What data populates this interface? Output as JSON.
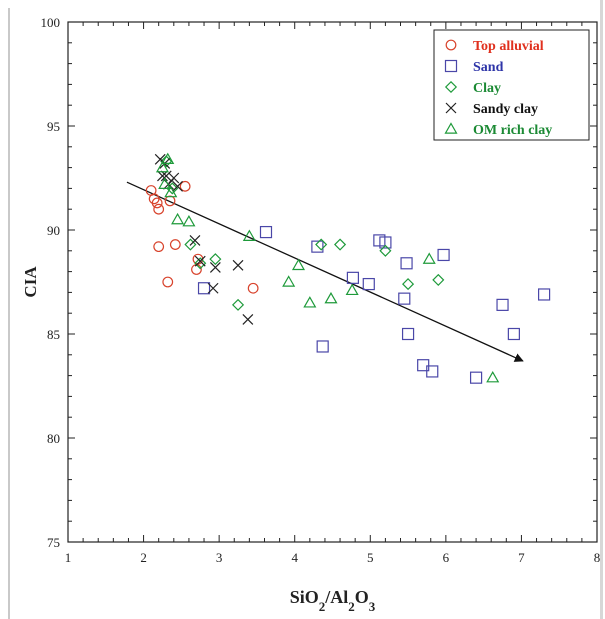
{
  "chart_data": {
    "type": "scatter",
    "xlabel": "SiO2/Al2O3",
    "ylabel": "CIA",
    "xlim": [
      1,
      8
    ],
    "ylim": [
      75,
      100
    ],
    "x_ticks": [
      "1",
      "2",
      "3",
      "4",
      "5",
      "6",
      "7",
      "8"
    ],
    "y_ticks": [
      "75",
      "80",
      "85",
      "90",
      "95",
      "100"
    ],
    "legend_position": "top-right",
    "series": [
      {
        "name": "Top alluvial",
        "marker": "circle",
        "color": "#d8432c",
        "label_color": "#e0301e",
        "points": [
          [
            2.1,
            91.9
          ],
          [
            2.14,
            91.5
          ],
          [
            2.18,
            91.3
          ],
          [
            2.2,
            91.0
          ],
          [
            2.2,
            89.2
          ],
          [
            2.35,
            91.4
          ],
          [
            2.42,
            89.3
          ],
          [
            2.55,
            92.1
          ],
          [
            2.32,
            87.5
          ],
          [
            2.7,
            88.1
          ],
          [
            2.72,
            88.6
          ],
          [
            3.45,
            87.2
          ]
        ]
      },
      {
        "name": "Sand",
        "marker": "square",
        "color": "#4a47a8",
        "label_color": "#2e35a8",
        "points": [
          [
            2.8,
            87.2
          ],
          [
            3.62,
            89.9
          ],
          [
            4.3,
            89.2
          ],
          [
            4.37,
            84.4
          ],
          [
            4.77,
            87.7
          ],
          [
            4.98,
            87.4
          ],
          [
            5.12,
            89.5
          ],
          [
            5.2,
            89.4
          ],
          [
            5.45,
            86.7
          ],
          [
            5.48,
            88.4
          ],
          [
            5.5,
            85.0
          ],
          [
            5.7,
            83.5
          ],
          [
            5.82,
            83.2
          ],
          [
            5.97,
            88.8
          ],
          [
            6.4,
            82.9
          ],
          [
            6.75,
            86.4
          ],
          [
            6.9,
            85.0
          ],
          [
            7.3,
            86.9
          ]
        ]
      },
      {
        "name": "Clay",
        "marker": "diamond",
        "color": "#1e9a3a",
        "label_color": "#1b8a34",
        "points": [
          [
            2.62,
            89.3
          ],
          [
            2.75,
            88.4
          ],
          [
            2.95,
            88.6
          ],
          [
            3.25,
            86.4
          ],
          [
            4.35,
            89.3
          ],
          [
            4.6,
            89.3
          ],
          [
            5.2,
            89.0
          ],
          [
            5.5,
            87.4
          ],
          [
            5.9,
            87.6
          ],
          [
            2.3,
            93.3
          ],
          [
            2.38,
            92.0
          ]
        ]
      },
      {
        "name": "Sandy clay",
        "marker": "cross",
        "color": "#222222",
        "label_color": "#111111",
        "points": [
          [
            2.22,
            93.4
          ],
          [
            2.25,
            92.6
          ],
          [
            2.28,
            93.2
          ],
          [
            2.3,
            92.6
          ],
          [
            2.33,
            92.2
          ],
          [
            2.4,
            92.5
          ],
          [
            2.45,
            92.1
          ],
          [
            2.68,
            89.5
          ],
          [
            2.75,
            88.5
          ],
          [
            2.92,
            87.2
          ],
          [
            2.95,
            88.2
          ],
          [
            3.25,
            88.3
          ],
          [
            3.38,
            85.7
          ]
        ]
      },
      {
        "name": "OM rich clay",
        "marker": "triangle",
        "color": "#1e9a3a",
        "label_color": "#1b8a34",
        "points": [
          [
            2.25,
            93.0
          ],
          [
            2.28,
            92.2
          ],
          [
            2.32,
            93.4
          ],
          [
            2.36,
            91.8
          ],
          [
            2.45,
            90.5
          ],
          [
            2.6,
            90.4
          ],
          [
            3.4,
            89.7
          ],
          [
            3.92,
            87.5
          ],
          [
            4.05,
            88.3
          ],
          [
            4.2,
            86.5
          ],
          [
            4.48,
            86.7
          ],
          [
            4.76,
            87.1
          ],
          [
            5.78,
            88.6
          ],
          [
            6.62,
            82.9
          ]
        ]
      }
    ],
    "trend_arrow": {
      "from": [
        1.78,
        92.3
      ],
      "to": [
        7.02,
        83.7
      ],
      "color": "#111111"
    }
  }
}
